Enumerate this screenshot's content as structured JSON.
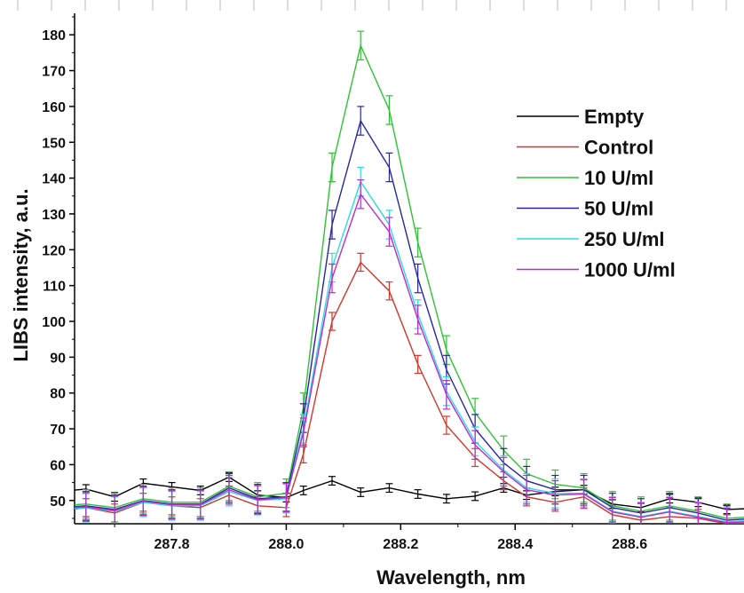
{
  "chart_data": {
    "type": "line",
    "xlabel": "Wavelength, nm",
    "ylabel": "LIBS intensity, a.u.",
    "xlim": [
      287.63,
      288.8
    ],
    "ylim": [
      43.5,
      186
    ],
    "x_ticks": [
      287.8,
      288.0,
      288.2,
      288.4,
      288.6
    ],
    "x_tick_labels": [
      "287.8",
      "288.0",
      "288.2",
      "288.4",
      "288.6"
    ],
    "y_ticks": [
      50,
      60,
      70,
      80,
      90,
      100,
      110,
      120,
      130,
      140,
      150,
      160,
      170,
      180
    ],
    "y_tick_labels": [
      "50",
      "60",
      "70",
      "80",
      "90",
      "100",
      "110",
      "120",
      "130",
      "140",
      "150",
      "160",
      "170",
      "180"
    ],
    "legend_position": "right",
    "grid": false,
    "x": [
      287.6,
      287.65,
      287.7,
      287.75,
      287.8,
      287.85,
      287.9,
      287.95,
      288.0,
      288.03,
      288.08,
      288.13,
      288.18,
      288.23,
      288.28,
      288.33,
      288.38,
      288.42,
      288.47,
      288.52,
      288.57,
      288.62,
      288.67,
      288.72,
      288.77,
      288.82
    ],
    "series": [
      {
        "name": "Empty",
        "color": "#000000",
        "error": 1.2,
        "values": [
          52.5,
          53.2,
          51.0,
          54.8,
          53.8,
          52.8,
          56.5,
          51.5,
          50.8,
          52.8,
          55.5,
          52.3,
          53.5,
          51.8,
          50.5,
          51.2,
          53.5,
          51.5,
          52.5,
          53.0,
          49.0,
          48.0,
          50.5,
          49.5,
          47.5,
          47.8
        ]
      },
      {
        "name": "Control",
        "color": "#d0362a",
        "error": 2.5,
        "values": [
          47.0,
          48.0,
          46.5,
          49.5,
          48.5,
          48.0,
          51.5,
          48.5,
          48.0,
          63.0,
          100.0,
          116.5,
          108.5,
          88.0,
          71.0,
          62.0,
          55.5,
          51.0,
          49.5,
          51.0,
          46.0,
          44.5,
          45.5,
          45.0,
          43.5,
          43.8
        ]
      },
      {
        "name": "10 U/ml",
        "color": "#2ec234",
        "error": 4.0,
        "values": [
          48.5,
          49.0,
          48.0,
          50.5,
          49.5,
          49.5,
          54.0,
          51.0,
          52.0,
          76.0,
          143.0,
          177.0,
          159.0,
          122.0,
          92.0,
          74.5,
          64.0,
          57.5,
          54.5,
          53.5,
          48.5,
          47.0,
          48.5,
          47.0,
          45.0,
          45.5
        ]
      },
      {
        "name": "50 U/ml",
        "color": "#2626a0",
        "error": 4.0,
        "values": [
          48.0,
          48.5,
          47.5,
          50.0,
          49.0,
          49.0,
          53.5,
          50.5,
          51.0,
          73.0,
          127.0,
          156.0,
          143.0,
          112.0,
          86.5,
          70.0,
          60.5,
          55.5,
          53.0,
          53.0,
          48.0,
          46.5,
          48.0,
          46.5,
          44.5,
          45.0
        ]
      },
      {
        "name": "250 U/ml",
        "color": "#2fd8e6",
        "error": 4.0,
        "values": [
          47.5,
          48.0,
          47.0,
          49.5,
          48.5,
          48.5,
          52.5,
          50.0,
          50.5,
          70.0,
          115.0,
          139.0,
          127.0,
          102.0,
          80.5,
          66.5,
          58.5,
          53.5,
          52.0,
          52.0,
          47.0,
          45.5,
          47.0,
          45.5,
          44.0,
          44.5
        ]
      },
      {
        "name": "1000 U/ml",
        "color": "#b82ccf",
        "error": 4.0,
        "values": [
          47.8,
          48.2,
          47.2,
          49.8,
          48.8,
          48.8,
          53.0,
          50.2,
          50.8,
          69.0,
          112.0,
          135.5,
          125.0,
          100.5,
          79.5,
          65.5,
          58.0,
          53.0,
          51.5,
          51.8,
          46.8,
          45.3,
          46.8,
          45.3,
          43.8,
          44.2
        ]
      }
    ]
  }
}
